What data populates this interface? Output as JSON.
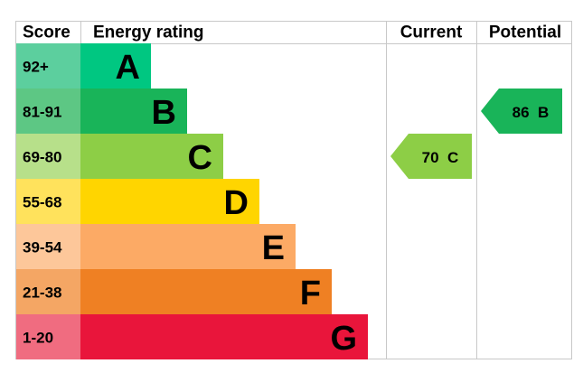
{
  "header": {
    "score": "Score",
    "rating": "Energy rating",
    "current": "Current",
    "potential": "Potential"
  },
  "bands": [
    {
      "letter": "A",
      "range": "92+",
      "color": "#00c781",
      "light": "#5ccf9e"
    },
    {
      "letter": "B",
      "range": "81-91",
      "color": "#19b459",
      "light": "#5dc784"
    },
    {
      "letter": "C",
      "range": "69-80",
      "color": "#8dce46",
      "light": "#b7e08a"
    },
    {
      "letter": "D",
      "range": "55-68",
      "color": "#ffd500",
      "light": "#ffe25c"
    },
    {
      "letter": "E",
      "range": "39-54",
      "color": "#fcaa65",
      "light": "#fdc79a"
    },
    {
      "letter": "F",
      "range": "21-38",
      "color": "#ef8023",
      "light": "#f4a664"
    },
    {
      "letter": "G",
      "range": "1-20",
      "color": "#e9153b",
      "light": "#f06c80"
    }
  ],
  "current": {
    "score": 70,
    "band": "C"
  },
  "potential": {
    "score": 86,
    "band": "B"
  }
}
